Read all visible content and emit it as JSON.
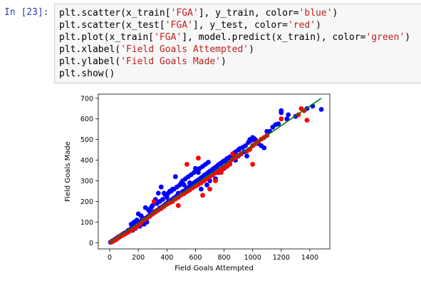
{
  "cell": {
    "prompt": "In [23]:",
    "code_lines": [
      [
        {
          "t": "plt.scatter(x_train[",
          "s": false
        },
        {
          "t": "'FGA'",
          "s": true
        },
        {
          "t": "], y_train, color=",
          "s": false
        },
        {
          "t": "'blue'",
          "s": true
        },
        {
          "t": ")",
          "s": false
        }
      ],
      [
        {
          "t": "plt.scatter(x_test[",
          "s": false
        },
        {
          "t": "'FGA'",
          "s": true
        },
        {
          "t": "], y_test, color=",
          "s": false
        },
        {
          "t": "'red'",
          "s": true
        },
        {
          "t": ")",
          "s": false
        }
      ],
      [
        {
          "t": "plt.plot(x_train[",
          "s": false
        },
        {
          "t": "'FGA'",
          "s": true
        },
        {
          "t": "], model.predict(x_train), color=",
          "s": false
        },
        {
          "t": "'green'",
          "s": true
        },
        {
          "t": ")",
          "s": false
        }
      ],
      [
        {
          "t": "plt.xlabel(",
          "s": false
        },
        {
          "t": "'Field Goals Attempted'",
          "s": true
        },
        {
          "t": ")",
          "s": false
        }
      ],
      [
        {
          "t": "plt.ylabel(",
          "s": false
        },
        {
          "t": "'Field Goals Made'",
          "s": true
        },
        {
          "t": ")",
          "s": false
        }
      ],
      [
        {
          "t": "plt.show()",
          "s": false
        }
      ]
    ]
  },
  "chart_data": {
    "type": "scatter",
    "xlabel": "Field Goals Attempted",
    "ylabel": "Field Goals Made",
    "xlim": [
      -80,
      1540
    ],
    "ylim": [
      -30,
      720
    ],
    "xticks": [
      0,
      200,
      400,
      600,
      800,
      1000,
      1200,
      1400
    ],
    "yticks": [
      0,
      100,
      200,
      300,
      400,
      500,
      600,
      700
    ],
    "grid": false,
    "series": [
      {
        "color": "#0000ff",
        "points": [
          [
            5,
            2
          ],
          [
            10,
            5
          ],
          [
            15,
            6
          ],
          [
            20,
            9
          ],
          [
            25,
            10
          ],
          [
            30,
            13
          ],
          [
            35,
            15
          ],
          [
            40,
            17
          ],
          [
            45,
            20
          ],
          [
            55,
            23
          ],
          [
            60,
            28
          ],
          [
            70,
            30
          ],
          [
            80,
            36
          ],
          [
            90,
            40
          ],
          [
            100,
            45
          ],
          [
            110,
            48
          ],
          [
            120,
            52
          ],
          [
            130,
            60
          ],
          [
            140,
            62
          ],
          [
            150,
            68
          ],
          [
            160,
            74
          ],
          [
            170,
            78
          ],
          [
            180,
            82
          ],
          [
            190,
            90
          ],
          [
            200,
            92
          ],
          [
            210,
            100
          ],
          [
            220,
            104
          ],
          [
            230,
            108
          ],
          [
            240,
            112
          ],
          [
            250,
            118
          ],
          [
            260,
            122
          ],
          [
            270,
            128
          ],
          [
            280,
            130
          ],
          [
            290,
            136
          ],
          [
            300,
            140
          ],
          [
            310,
            145
          ],
          [
            320,
            150
          ],
          [
            330,
            156
          ],
          [
            340,
            160
          ],
          [
            350,
            168
          ],
          [
            360,
            170
          ],
          [
            370,
            175
          ],
          [
            380,
            180
          ],
          [
            390,
            186
          ],
          [
            400,
            192
          ],
          [
            410,
            198
          ],
          [
            420,
            200
          ],
          [
            430,
            206
          ],
          [
            440,
            210
          ],
          [
            450,
            216
          ],
          [
            460,
            220
          ],
          [
            470,
            228
          ],
          [
            480,
            230
          ],
          [
            490,
            236
          ],
          [
            500,
            240
          ],
          [
            510,
            248
          ],
          [
            520,
            250
          ],
          [
            530,
            256
          ],
          [
            540,
            262
          ],
          [
            550,
            268
          ],
          [
            560,
            272
          ],
          [
            570,
            278
          ],
          [
            580,
            284
          ],
          [
            590,
            290
          ],
          [
            600,
            294
          ],
          [
            610,
            300
          ],
          [
            620,
            305
          ],
          [
            630,
            308
          ],
          [
            640,
            315
          ],
          [
            650,
            318
          ],
          [
            660,
            326
          ],
          [
            670,
            330
          ],
          [
            680,
            335
          ],
          [
            690,
            340
          ],
          [
            700,
            346
          ],
          [
            710,
            350
          ],
          [
            720,
            356
          ],
          [
            730,
            360
          ],
          [
            740,
            366
          ],
          [
            750,
            370
          ],
          [
            760,
            378
          ],
          [
            770,
            382
          ],
          [
            780,
            386
          ],
          [
            790,
            392
          ],
          [
            800,
            396
          ],
          [
            810,
            400
          ],
          [
            820,
            408
          ],
          [
            830,
            410
          ],
          [
            840,
            416
          ],
          [
            860,
            430
          ],
          [
            870,
            434
          ],
          [
            880,
            440
          ],
          [
            900,
            450
          ],
          [
            910,
            456
          ],
          [
            930,
            462
          ],
          [
            950,
            470
          ],
          [
            970,
            486
          ],
          [
            990,
            495
          ],
          [
            1010,
            505
          ],
          [
            1020,
            498
          ],
          [
            1040,
            480
          ],
          [
            1060,
            470
          ],
          [
            1080,
            460
          ],
          [
            1100,
            520
          ],
          [
            1120,
            540
          ],
          [
            1160,
            572
          ],
          [
            1180,
            576
          ],
          [
            1200,
            640
          ],
          [
            1240,
            600
          ],
          [
            1250,
            620
          ],
          [
            1300,
            612
          ],
          [
            1380,
            650
          ],
          [
            1420,
            662
          ],
          [
            1480,
            646
          ],
          [
            360,
            270
          ],
          [
            380,
            240
          ],
          [
            420,
            250
          ],
          [
            460,
            320
          ],
          [
            500,
            290
          ],
          [
            250,
            170
          ],
          [
            270,
            160
          ],
          [
            200,
            140
          ],
          [
            300,
            180
          ],
          [
            320,
            210
          ],
          [
            340,
            240
          ],
          [
            400,
            220
          ],
          [
            440,
            260
          ],
          [
            480,
            240
          ],
          [
            520,
            280
          ],
          [
            560,
            290
          ],
          [
            600,
            360
          ],
          [
            620,
            340
          ],
          [
            640,
            260
          ],
          [
            680,
            280
          ],
          [
            700,
            300
          ],
          [
            720,
            330
          ],
          [
            740,
            310
          ],
          [
            760,
            340
          ],
          [
            780,
            350
          ],
          [
            800,
            360
          ],
          [
            820,
            380
          ],
          [
            840,
            390
          ],
          [
            860,
            410
          ],
          [
            880,
            400
          ],
          [
            900,
            420
          ],
          [
            920,
            430
          ],
          [
            940,
            440
          ],
          [
            960,
            420
          ],
          [
            980,
            500
          ],
          [
            1000,
            510
          ],
          [
            150,
            90
          ],
          [
            160,
            60
          ],
          [
            170,
            100
          ],
          [
            180,
            70
          ],
          [
            190,
            110
          ],
          [
            210,
            80
          ],
          [
            220,
            130
          ],
          [
            230,
            120
          ],
          [
            240,
            90
          ],
          [
            260,
            100
          ],
          [
            280,
            150
          ],
          [
            290,
            170
          ],
          [
            310,
            150
          ],
          [
            330,
            190
          ],
          [
            350,
            200
          ],
          [
            370,
            210
          ],
          [
            390,
            230
          ],
          [
            410,
            240
          ],
          [
            430,
            250
          ],
          [
            450,
            260
          ],
          [
            470,
            270
          ],
          [
            490,
            280
          ],
          [
            510,
            300
          ],
          [
            530,
            310
          ],
          [
            550,
            320
          ],
          [
            570,
            330
          ],
          [
            590,
            340
          ],
          [
            610,
            350
          ],
          [
            630,
            360
          ],
          [
            650,
            370
          ],
          [
            670,
            380
          ],
          [
            690,
            390
          ],
          [
            1100,
            540
          ],
          [
            1140,
            560
          ],
          [
            1200,
            630
          ]
        ]
      },
      {
        "color": "#ff0000",
        "points": [
          [
            10,
            3
          ],
          [
            20,
            6
          ],
          [
            30,
            10
          ],
          [
            40,
            14
          ],
          [
            50,
            18
          ],
          [
            60,
            24
          ],
          [
            70,
            28
          ],
          [
            80,
            34
          ],
          [
            90,
            36
          ],
          [
            100,
            40
          ],
          [
            110,
            44
          ],
          [
            120,
            48
          ],
          [
            130,
            52
          ],
          [
            140,
            58
          ],
          [
            150,
            60
          ],
          [
            160,
            66
          ],
          [
            170,
            70
          ],
          [
            180,
            74
          ],
          [
            190,
            80
          ],
          [
            200,
            86
          ],
          [
            220,
            96
          ],
          [
            240,
            110
          ],
          [
            260,
            118
          ],
          [
            280,
            128
          ],
          [
            300,
            140
          ],
          [
            320,
            148
          ],
          [
            340,
            158
          ],
          [
            360,
            166
          ],
          [
            380,
            176
          ],
          [
            400,
            186
          ],
          [
            420,
            194
          ],
          [
            440,
            200
          ],
          [
            460,
            212
          ],
          [
            480,
            220
          ],
          [
            500,
            232
          ],
          [
            520,
            238
          ],
          [
            540,
            248
          ],
          [
            560,
            256
          ],
          [
            580,
            266
          ],
          [
            600,
            274
          ],
          [
            620,
            282
          ],
          [
            640,
            290
          ],
          [
            660,
            300
          ],
          [
            680,
            310
          ],
          [
            700,
            320
          ],
          [
            720,
            328
          ],
          [
            740,
            338
          ],
          [
            760,
            346
          ],
          [
            780,
            356
          ],
          [
            800,
            364
          ],
          [
            820,
            376
          ],
          [
            840,
            390
          ],
          [
            860,
            404
          ],
          [
            880,
            412
          ],
          [
            900,
            422
          ],
          [
            920,
            432
          ],
          [
            960,
            444
          ],
          [
            980,
            452
          ],
          [
            1000,
            470
          ],
          [
            1020,
            480
          ],
          [
            1040,
            490
          ],
          [
            1060,
            502
          ],
          [
            1080,
            510
          ],
          [
            1100,
            520
          ],
          [
            1200,
            600
          ],
          [
            1320,
            620
          ],
          [
            1340,
            650
          ],
          [
            1360,
            640
          ],
          [
            1380,
            594
          ],
          [
            540,
            380
          ],
          [
            620,
            410
          ],
          [
            820,
            370
          ],
          [
            840,
            380
          ],
          [
            860,
            430
          ],
          [
            1000,
            380
          ],
          [
            700,
            260
          ],
          [
            650,
            230
          ],
          [
            740,
            300
          ],
          [
            780,
            340
          ],
          [
            480,
            180
          ],
          [
            310,
            200
          ]
        ]
      }
    ],
    "line": {
      "color": "#008000",
      "points": [
        [
          0,
          0
        ],
        [
          1480,
          700
        ]
      ]
    }
  }
}
